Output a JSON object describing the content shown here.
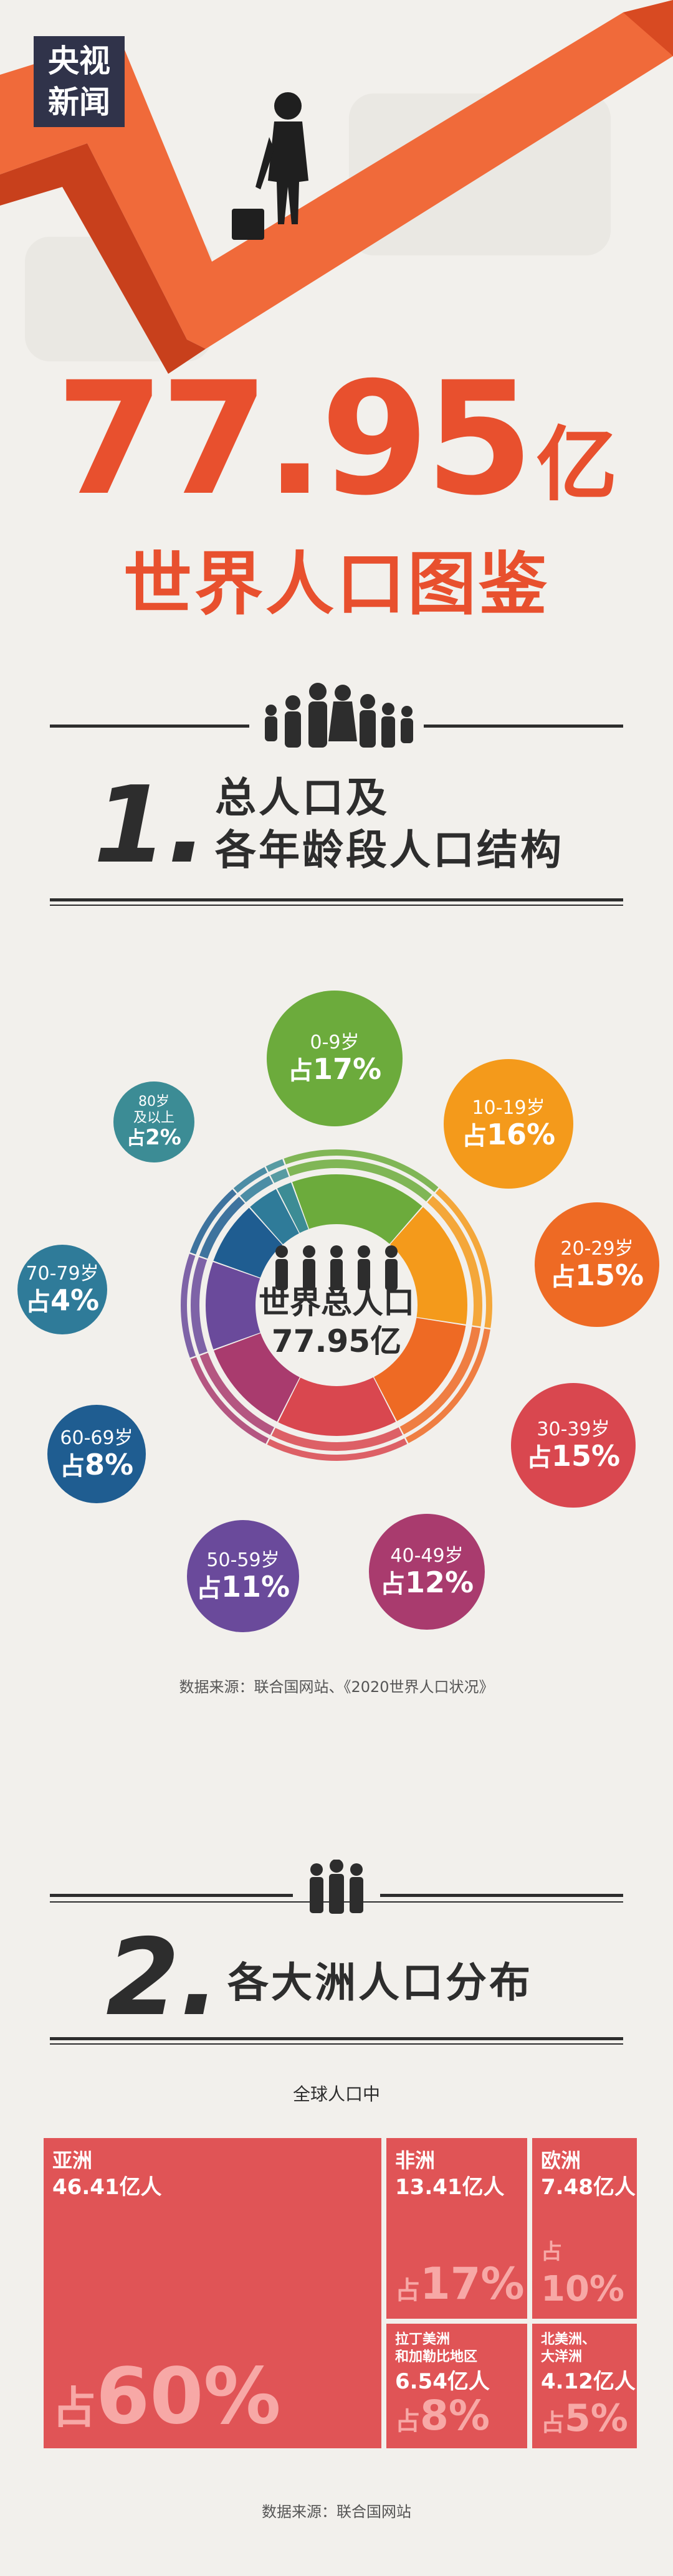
{
  "logo": {
    "line1": "央视",
    "line2": "新闻"
  },
  "hero": {
    "number": "77.95",
    "unit": "亿",
    "title": "世界人口图鉴"
  },
  "section1": {
    "number": "1.",
    "title_line1": "总人口及",
    "title_line2": "各年龄段人口结构",
    "center_line1": "世界总人口",
    "center_line2": "77.95亿",
    "groups": [
      {
        "label": "0-9岁",
        "prefix": "占",
        "pct": "17%",
        "color": "#6cab3c"
      },
      {
        "label": "10-19岁",
        "prefix": "占",
        "pct": "16%",
        "color": "#f49a1b"
      },
      {
        "label": "20-29岁",
        "prefix": "占",
        "pct": "15%",
        "color": "#ee6a24"
      },
      {
        "label": "30-39岁",
        "prefix": "占",
        "pct": "15%",
        "color": "#d9474f"
      },
      {
        "label": "40-49岁",
        "prefix": "占",
        "pct": "12%",
        "color": "#a93b6e"
      },
      {
        "label": "50-59岁",
        "prefix": "占",
        "pct": "11%",
        "color": "#6a4a9b"
      },
      {
        "label": "60-69岁",
        "prefix": "占",
        "pct": "8%",
        "color": "#1f5d91"
      },
      {
        "label": "70-79岁",
        "prefix": "占",
        "pct": "4%",
        "color": "#2f7b99"
      },
      {
        "label": "80岁",
        "label2": "及以上",
        "prefix": "占",
        "pct": "2%",
        "color": "#3c8c95"
      }
    ],
    "source": "数据来源：联合国网站、《2020世界人口状况》"
  },
  "section2": {
    "number": "2.",
    "title": "各大洲人口分布",
    "subtitle": "全球人口中",
    "tiles": [
      {
        "name": "亚洲",
        "value": "46.41亿人",
        "prefix": "占",
        "pct": "60%"
      },
      {
        "name": "非洲",
        "value": "13.41亿人",
        "prefix": "占",
        "pct": "17%"
      },
      {
        "name": "欧洲",
        "value": "7.48亿人",
        "prefix": "占",
        "pct": "10%"
      },
      {
        "name": "拉丁美洲",
        "name2": "和加勒比地区",
        "value": "6.54亿人",
        "prefix": "占",
        "pct": "8%"
      },
      {
        "name": "北美洲、",
        "name2": "大洋洲",
        "value": "4.12亿人",
        "prefix": "占",
        "pct": "5%"
      }
    ],
    "source": "数据来源：联合国网站"
  },
  "colors": {
    "accent": "#e8502e",
    "tile": "#e05456",
    "dark": "#2d2d2d"
  }
}
